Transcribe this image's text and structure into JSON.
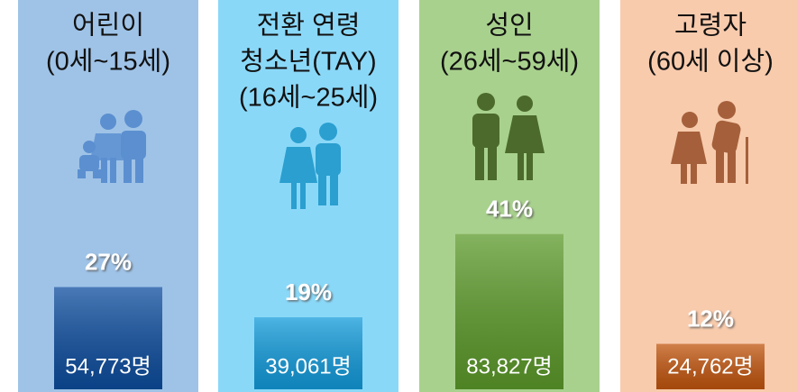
{
  "chart_data": {
    "type": "bar",
    "categories": [
      [
        "어린이",
        "(0세~15세)"
      ],
      [
        "전환 연령",
        "청소년(TAY)",
        "(16세~25세)"
      ],
      [
        "성인",
        "(26세~59세)"
      ],
      [
        "고령자",
        "(60세 이상)"
      ]
    ],
    "values": [
      27,
      19,
      41,
      12
    ],
    "value_labels": [
      "27%",
      "19%",
      "41%",
      "12%"
    ],
    "counts": [
      54773,
      39061,
      83827,
      24762
    ],
    "count_labels": [
      "54,773명",
      "39,061명",
      "83,827명",
      "24,762명"
    ],
    "colors": [
      "#0d4d9e",
      "#129bdb",
      "#5c9a2a",
      "#c2560f"
    ],
    "panel_colors": [
      "#9fc3e7",
      "#8ad8f8",
      "#a9d18e",
      "#f8cbad"
    ],
    "ylim": [
      0,
      100
    ]
  }
}
